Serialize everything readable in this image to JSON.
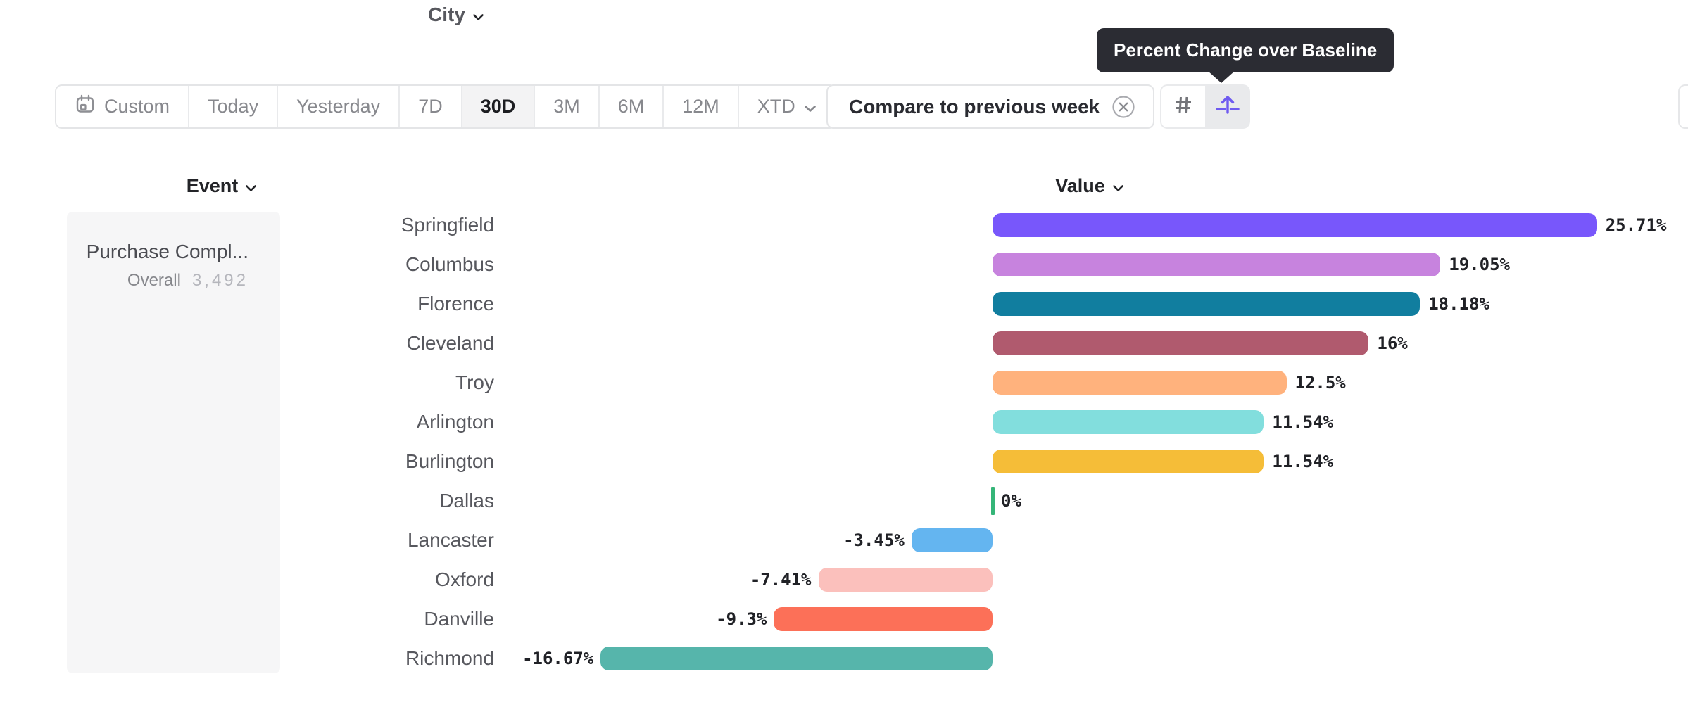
{
  "tooltip": {
    "text": "Percent Change over Baseline",
    "bg_color": "#2b2c33"
  },
  "toolbar": {
    "date_buttons": [
      {
        "label": "Custom",
        "icon": "calendar-icon",
        "selected": false
      },
      {
        "label": "Today",
        "selected": false
      },
      {
        "label": "Yesterday",
        "selected": false
      },
      {
        "label": "7D",
        "selected": false
      },
      {
        "label": "30D",
        "selected": true
      },
      {
        "label": "3M",
        "selected": false
      },
      {
        "label": "6M",
        "selected": false
      },
      {
        "label": "12M",
        "selected": false
      },
      {
        "label": "XTD",
        "selected": false,
        "has_dropdown": true
      }
    ],
    "compare_chip": {
      "label": "Compare to previous week",
      "close_icon": "circled-x-icon"
    },
    "view_toggle": {
      "options": [
        {
          "name": "numbers",
          "icon": "hash-icon",
          "selected": false
        },
        {
          "name": "percent-change-over-baseline",
          "icon": "arrow-over-baseline-icon",
          "selected": true,
          "accent": "#6f5bf0"
        }
      ]
    }
  },
  "columns": {
    "event": "Event",
    "city": "City",
    "value": "Value"
  },
  "event_panel": {
    "event_name": "Purchase Compl...",
    "overall_label": "Overall",
    "overall_value": "3,492"
  },
  "chart_data": {
    "type": "bar",
    "orientation": "horizontal",
    "title": "",
    "series_name": "Value",
    "unit": "%",
    "baseline": 0,
    "xlim": [
      -18,
      28
    ],
    "grid": false,
    "categories": [
      "Springfield",
      "Columbus",
      "Florence",
      "Cleveland",
      "Troy",
      "Arlington",
      "Burlington",
      "Dallas",
      "Lancaster",
      "Oxford",
      "Danville",
      "Richmond"
    ],
    "values": [
      25.71,
      19.05,
      18.18,
      16,
      12.5,
      11.54,
      11.54,
      0,
      -3.45,
      -7.41,
      -9.3,
      -16.67
    ],
    "value_labels": [
      "25.71%",
      "19.05%",
      "18.18%",
      "16%",
      "12.5%",
      "11.54%",
      "11.54%",
      "0%",
      "-3.45%",
      "-7.41%",
      "-9.3%",
      "-16.67%"
    ],
    "bar_colors": [
      "#7857fb",
      "#c783de",
      "#117e9f",
      "#b05a6e",
      "#ffb27d",
      "#82dedd",
      "#f5bd38",
      "#35b578",
      "#64b5f0",
      "#fbc0bc",
      "#fc7058",
      "#56b5ab"
    ],
    "zero_tick_color": "#35b578"
  }
}
